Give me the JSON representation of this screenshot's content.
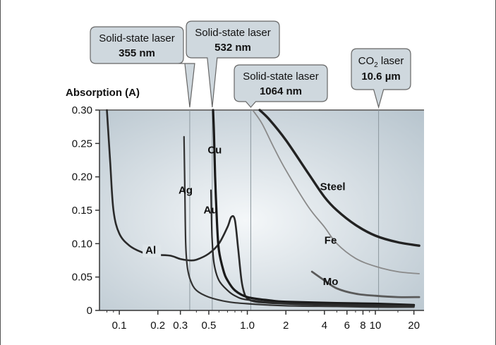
{
  "chart_data": {
    "type": "line",
    "ylabel": "Absorption (A)",
    "xlabel": "",
    "x_scale": "log",
    "xlim": [
      0.07,
      24
    ],
    "ylim": [
      0,
      0.3
    ],
    "x_ticks": [
      "0.1",
      "0.2",
      "0.3",
      "0.5",
      "1.0",
      "2",
      "4",
      "6",
      "8",
      "10",
      "20"
    ],
    "x_tick_values": [
      0.1,
      0.2,
      0.3,
      0.5,
      1.0,
      2,
      4,
      6,
      8,
      10,
      20
    ],
    "y_ticks": [
      "0.30",
      "0.25",
      "0.20",
      "0.15",
      "0.10",
      "0.05",
      "0"
    ],
    "y_tick_values": [
      0.3,
      0.25,
      0.2,
      0.15,
      0.1,
      0.05,
      0
    ],
    "laser_lines": [
      {
        "line1": "Solid-state laser",
        "line2": "355 nm",
        "x": 0.355
      },
      {
        "line1": "Solid-state laser",
        "line2": "532 nm",
        "x": 0.532
      },
      {
        "line1": "Solid-state laser",
        "line2": "1064 nm",
        "x": 1.064
      },
      {
        "line1": "CO",
        "sub": "2",
        "line1b": " laser",
        "line2": "10.6 µm",
        "x": 10.6
      }
    ],
    "series": [
      {
        "name": "Al",
        "color": "#2a2a2a",
        "width": 2.6,
        "x": [
          0.08,
          0.085,
          0.09,
          0.1,
          0.12,
          0.15,
          0.18,
          0.2,
          0.25,
          0.3,
          0.35,
          0.4,
          0.5,
          0.6,
          0.7,
          0.75,
          0.8,
          0.85,
          0.9,
          0.95,
          1.0,
          1.1,
          1.3,
          2,
          5,
          10,
          20
        ],
        "y": [
          0.3,
          0.22,
          0.15,
          0.115,
          0.097,
          0.087,
          0.082,
          0.083,
          0.082,
          0.077,
          0.075,
          0.076,
          0.085,
          0.1,
          0.125,
          0.14,
          0.135,
          0.09,
          0.045,
          0.025,
          0.018,
          0.014,
          0.012,
          0.01,
          0.008,
          0.007,
          0.006
        ],
        "label": "Al",
        "label_x": 0.16,
        "label_y": 0.085
      },
      {
        "name": "Ag",
        "color": "#333333",
        "width": 2.2,
        "x": [
          0.32,
          0.325,
          0.33,
          0.34,
          0.36,
          0.4,
          0.5,
          0.7,
          1.0,
          2,
          5,
          10,
          20
        ],
        "y": [
          0.26,
          0.18,
          0.1,
          0.065,
          0.045,
          0.03,
          0.02,
          0.013,
          0.01,
          0.007,
          0.006,
          0.005,
          0.005
        ],
        "label": "Ag",
        "label_x": 0.29,
        "label_y": 0.175
      },
      {
        "name": "Cu",
        "color": "#1a1a1a",
        "width": 3.2,
        "x": [
          0.54,
          0.55,
          0.56,
          0.58,
          0.6,
          0.65,
          0.7,
          0.8,
          1.0,
          1.5,
          2,
          5,
          10,
          20
        ],
        "y": [
          0.3,
          0.26,
          0.2,
          0.13,
          0.09,
          0.06,
          0.045,
          0.03,
          0.02,
          0.015,
          0.013,
          0.011,
          0.01,
          0.008
        ],
        "label": "Cu",
        "label_x": 0.49,
        "label_y": 0.235
      },
      {
        "name": "Au",
        "color": "#2a2a2a",
        "width": 2.2,
        "x": [
          0.52,
          0.53,
          0.55,
          0.6,
          0.7,
          0.8,
          1.0,
          2,
          5,
          10,
          20
        ],
        "y": [
          0.18,
          0.11,
          0.07,
          0.045,
          0.03,
          0.022,
          0.016,
          0.011,
          0.009,
          0.008,
          0.007
        ],
        "label": "Au",
        "label_x": 0.455,
        "label_y": 0.145
      },
      {
        "name": "Steel",
        "color": "#222222",
        "width": 3.4,
        "x": [
          1.25,
          1.5,
          2,
          3,
          4,
          5,
          7,
          10,
          15,
          22
        ],
        "y": [
          0.3,
          0.285,
          0.255,
          0.205,
          0.17,
          0.15,
          0.128,
          0.112,
          0.102,
          0.097
        ],
        "label": "Steel",
        "label_x": 3.7,
        "label_y": 0.18
      },
      {
        "name": "Fe",
        "color": "#8a8a8a",
        "width": 1.8,
        "x": [
          1.1,
          1.3,
          1.6,
          2,
          3,
          4,
          5,
          7,
          10,
          15,
          22
        ],
        "y": [
          0.3,
          0.28,
          0.245,
          0.21,
          0.155,
          0.125,
          0.1,
          0.078,
          0.066,
          0.058,
          0.055
        ],
        "label": "Fe",
        "label_x": 4.0,
        "label_y": 0.1
      },
      {
        "name": "Mo",
        "color": "#5a5a5a",
        "width": 2.8,
        "x": [
          3.2,
          4,
          5,
          7,
          10,
          15,
          22
        ],
        "y": [
          0.058,
          0.045,
          0.033,
          0.025,
          0.022,
          0.02,
          0.02
        ],
        "label": "Mo",
        "label_x": 3.9,
        "label_y": 0.038
      }
    ]
  },
  "colors": {
    "plot_bg_edge": "#b9c6cf",
    "plot_bg_center": "#f4f7f9",
    "callout_fill": "#cfd8de",
    "callout_stroke": "#666666",
    "axis": "#333333"
  }
}
